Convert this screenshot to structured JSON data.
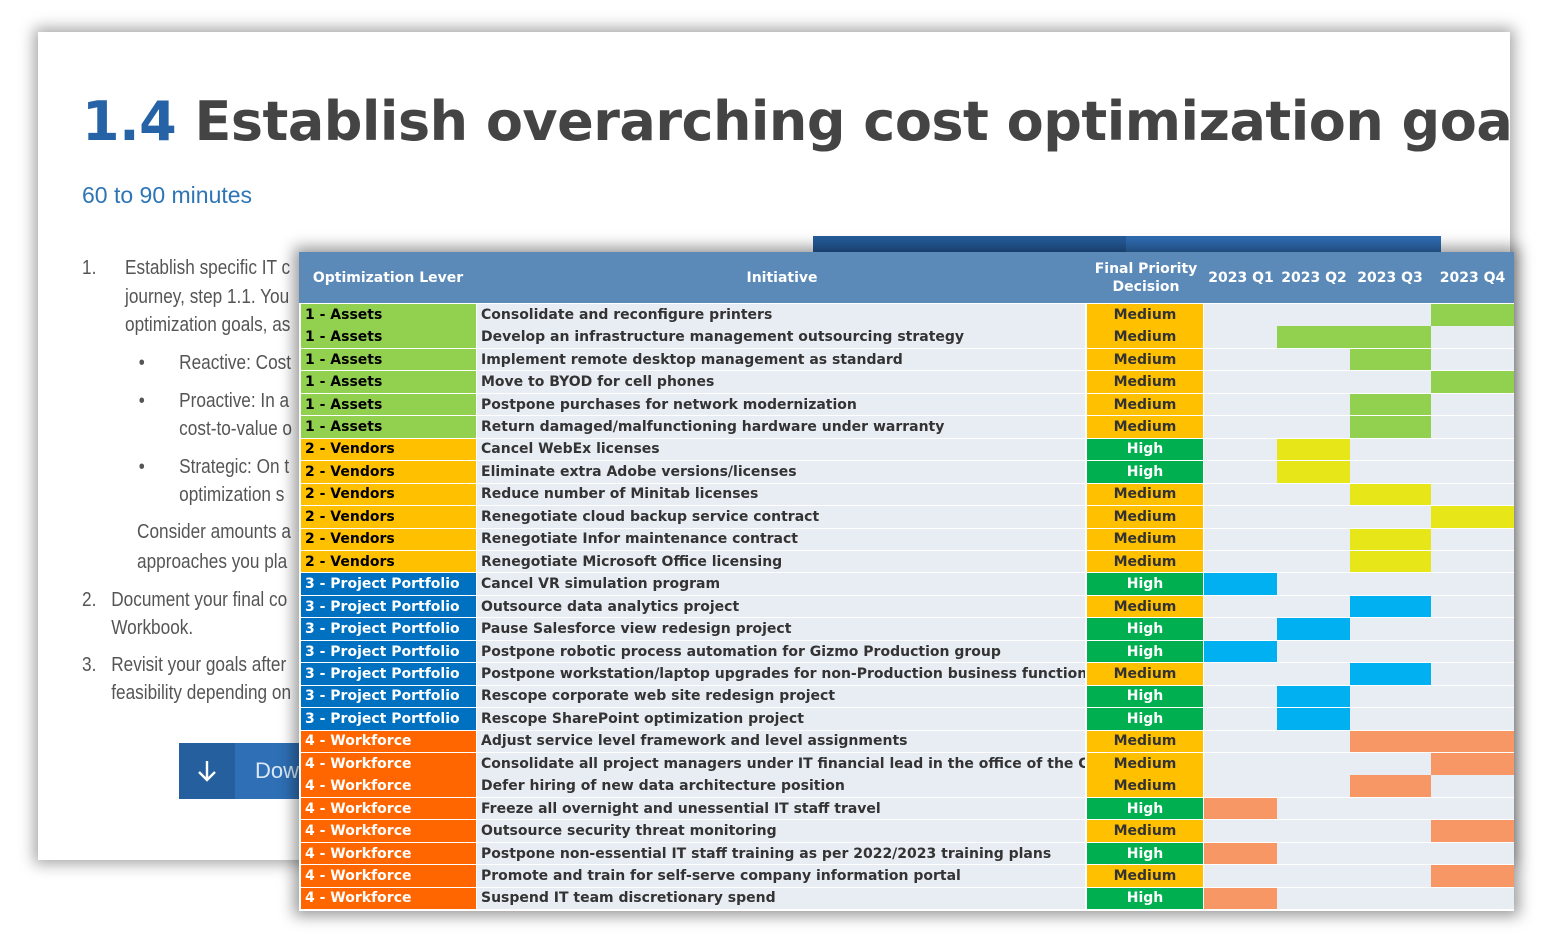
{
  "background_slide": {
    "title_number": "1.4",
    "title_text": "Establish overarching cost optimization goals",
    "duration": "60 to 90 minutes",
    "steps": {
      "s1_num": "1.",
      "s1_line1": "Establish specific IT c",
      "s1_line2": "journey, step 1.1. You",
      "s1_line3": "optimization goals, as",
      "b1": "Reactive: Cost",
      "b2_line1": "Proactive: In a",
      "b2_line2": "cost-to-value o",
      "b3_line1": "Strategic:  On t",
      "b3_line2": "optimization s",
      "consider_line1": "Consider amounts a",
      "consider_line2": "approaches you pla",
      "s2_num": "2.",
      "s2_line1": "Document your final co",
      "s2_line2": "Workbook.",
      "s3_num": "3.",
      "s3_line1": "Revisit your goals after",
      "s3_line2": "feasibility depending on"
    },
    "download_label": "Dow"
  },
  "table": {
    "headers": {
      "lever": "Optimization Lever",
      "initiative": "Initiative",
      "priority": "Final Priority Decision",
      "q1": "2023 Q1",
      "q2": "2023 Q2",
      "q3": "2023 Q3",
      "q4": "2023 Q4"
    },
    "colors": {
      "assets": "#92d050",
      "vendors": "#ffc000",
      "projects": "#0070c0",
      "workforce": "#ff6600",
      "medium": "#ffc000",
      "high": "#00b050",
      "bar_assets": "#92d050",
      "bar_vendors": "#e6e619",
      "bar_projects": "#00b0f0",
      "bar_workforce": "#f79765"
    },
    "rows": [
      {
        "lever": "1 - Assets",
        "initiative": "Consolidate and reconfigure printers",
        "priority": "Medium",
        "start": 3,
        "end": 3
      },
      {
        "lever": "1 - Assets",
        "initiative": "Develop an infrastructure management outsourcing strategy",
        "priority": "Medium",
        "start": 1,
        "end": 2
      },
      {
        "lever": "1 - Assets",
        "initiative": "Implement remote desktop management as standard",
        "priority": "Medium",
        "start": 2,
        "end": 2
      },
      {
        "lever": "1 - Assets",
        "initiative": "Move to BYOD for cell phones",
        "priority": "Medium",
        "start": 3,
        "end": 3
      },
      {
        "lever": "1 - Assets",
        "initiative": "Postpone purchases for network modernization",
        "priority": "Medium",
        "start": 2,
        "end": 2
      },
      {
        "lever": "1 - Assets",
        "initiative": "Return damaged/malfunctioning hardware under warranty",
        "priority": "Medium",
        "start": 2,
        "end": 2
      },
      {
        "lever": "2 - Vendors",
        "initiative": "Cancel WebEx licenses",
        "priority": "High",
        "start": 1,
        "end": 1
      },
      {
        "lever": "2 - Vendors",
        "initiative": "Eliminate extra Adobe versions/licenses",
        "priority": "High",
        "start": 1,
        "end": 1
      },
      {
        "lever": "2 - Vendors",
        "initiative": "Reduce number of Minitab licenses",
        "priority": "Medium",
        "start": 2,
        "end": 2
      },
      {
        "lever": "2 - Vendors",
        "initiative": "Renegotiate cloud backup service contract",
        "priority": "Medium",
        "start": 3,
        "end": 3
      },
      {
        "lever": "2 - Vendors",
        "initiative": "Renegotiate Infor maintenance contract",
        "priority": "Medium",
        "start": 2,
        "end": 2
      },
      {
        "lever": "2 - Vendors",
        "initiative": "Renegotiate Microsoft Office licensing",
        "priority": "Medium",
        "start": 2,
        "end": 2
      },
      {
        "lever": "3 - Project Portfolio",
        "initiative": "Cancel VR simulation program",
        "priority": "High",
        "start": 0,
        "end": 0
      },
      {
        "lever": "3 - Project Portfolio",
        "initiative": "Outsource data analytics project",
        "priority": "Medium",
        "start": 2,
        "end": 2
      },
      {
        "lever": "3 - Project Portfolio",
        "initiative": "Pause Salesforce view redesign project",
        "priority": "High",
        "start": 1,
        "end": 1
      },
      {
        "lever": "3 - Project Portfolio",
        "initiative": "Postpone robotic process automation for Gizmo Production group",
        "priority": "High",
        "start": 0,
        "end": 0
      },
      {
        "lever": "3 - Project Portfolio",
        "initiative": "Postpone workstation/laptop upgrades for non-Production business functions",
        "priority": "Medium",
        "start": 2,
        "end": 2
      },
      {
        "lever": "3 - Project Portfolio",
        "initiative": "Rescope corporate web site redesign project",
        "priority": "High",
        "start": 1,
        "end": 1
      },
      {
        "lever": "3 - Project Portfolio",
        "initiative": "Rescope SharePoint optimization project",
        "priority": "High",
        "start": 1,
        "end": 1
      },
      {
        "lever": "4 - Workforce",
        "initiative": "Adjust service level framework and level assignments",
        "priority": "Medium",
        "start": 2,
        "end": 3
      },
      {
        "lever": "4 - Workforce",
        "initiative": "Consolidate all project managers under IT financial lead in the office of the CIO",
        "priority": "Medium",
        "start": 3,
        "end": 3
      },
      {
        "lever": "4 - Workforce",
        "initiative": "Defer hiring of new data architecture position",
        "priority": "Medium",
        "start": 2,
        "end": 2
      },
      {
        "lever": "4 - Workforce",
        "initiative": "Freeze all overnight and unessential IT staff travel",
        "priority": "High",
        "start": 0,
        "end": 0
      },
      {
        "lever": "4 - Workforce",
        "initiative": "Outsource security threat monitoring",
        "priority": "Medium",
        "start": 3,
        "end": 3
      },
      {
        "lever": "4 - Workforce",
        "initiative": "Postpone non-essential IT staff training as per 2022/2023 training plans",
        "priority": "High",
        "start": 0,
        "end": 0
      },
      {
        "lever": "4 - Workforce",
        "initiative": "Promote and train for self-serve company information portal",
        "priority": "Medium",
        "start": 3,
        "end": 3
      },
      {
        "lever": "4 - Workforce",
        "initiative": "Suspend IT team discretionary spend",
        "priority": "High",
        "start": 0,
        "end": 0
      }
    ]
  }
}
